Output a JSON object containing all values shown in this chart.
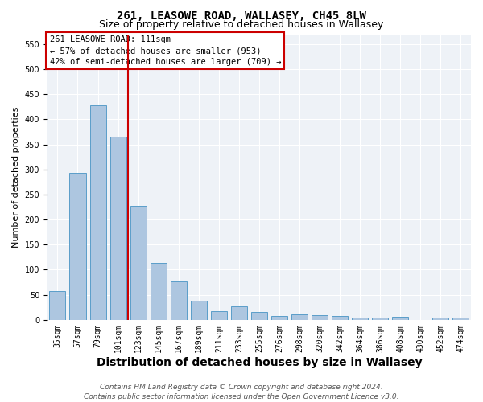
{
  "title": "261, LEASOWE ROAD, WALLASEY, CH45 8LW",
  "subtitle": "Size of property relative to detached houses in Wallasey",
  "xlabel": "Distribution of detached houses by size in Wallasey",
  "ylabel": "Number of detached properties",
  "categories": [
    "35sqm",
    "57sqm",
    "79sqm",
    "101sqm",
    "123sqm",
    "145sqm",
    "167sqm",
    "189sqm",
    "211sqm",
    "233sqm",
    "255sqm",
    "276sqm",
    "298sqm",
    "320sqm",
    "342sqm",
    "364sqm",
    "386sqm",
    "408sqm",
    "430sqm",
    "452sqm",
    "474sqm"
  ],
  "values": [
    57,
    293,
    428,
    365,
    228,
    113,
    77,
    38,
    18,
    27,
    16,
    8,
    11,
    9,
    8,
    5,
    5,
    6,
    0,
    5,
    4
  ],
  "bar_color": "#adc6e0",
  "bar_edge_color": "#5a9ec9",
  "red_line_x": 3.5,
  "annotation_line1": "261 LEASOWE ROAD: 111sqm",
  "annotation_line2": "← 57% of detached houses are smaller (953)",
  "annotation_line3": "42% of semi-detached houses are larger (709) →",
  "vline_color": "#cc0000",
  "ylim": [
    0,
    570
  ],
  "yticks": [
    0,
    50,
    100,
    150,
    200,
    250,
    300,
    350,
    400,
    450,
    500,
    550
  ],
  "footnote": "Contains HM Land Registry data © Crown copyright and database right 2024.\nContains public sector information licensed under the Open Government Licence v3.0.",
  "background_color": "#eef2f7",
  "bar_width": 0.8,
  "title_fontsize": 10,
  "subtitle_fontsize": 9,
  "xlabel_fontsize": 10,
  "ylabel_fontsize": 8,
  "tick_fontsize": 7,
  "annotation_fontsize": 7.5,
  "footnote_fontsize": 6.5
}
